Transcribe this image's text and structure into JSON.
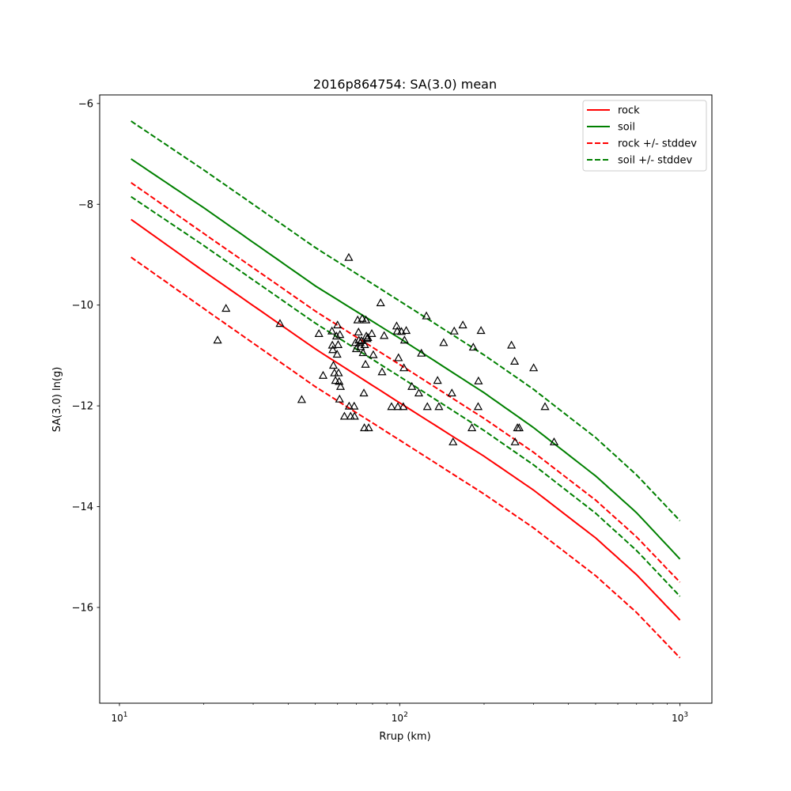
{
  "chart_data": {
    "type": "scatter",
    "title": "2016p864754: SA(3.0) mean",
    "xlabel": "Rrup (km)",
    "ylabel": "SA(3.0) ln(g)",
    "xscale": "log",
    "xlim": [
      8.5,
      1300
    ],
    "ylim": [
      -17.9,
      -5.83
    ],
    "x_ticks": [
      {
        "value": 10,
        "base": "10",
        "exp": "1"
      },
      {
        "value": 100,
        "base": "10",
        "exp": "2"
      },
      {
        "value": 1000,
        "base": "10",
        "exp": "3"
      }
    ],
    "y_ticks": [
      {
        "value": -6,
        "label": "−6"
      },
      {
        "value": -8,
        "label": "−8"
      },
      {
        "value": -10,
        "label": "−10"
      },
      {
        "value": -12,
        "label": "−12"
      },
      {
        "value": -14,
        "label": "−14"
      },
      {
        "value": -16,
        "label": "−16"
      }
    ],
    "grid": false,
    "legend_position": "top-right",
    "series": [
      {
        "name": "rock",
        "style": "solid",
        "color": "#ff0000",
        "x": [
          11,
          20,
          50,
          100,
          200,
          300,
          500,
          700,
          1000
        ],
        "y": [
          -8.3,
          -9.33,
          -10.87,
          -11.94,
          -13.0,
          -13.67,
          -14.62,
          -15.35,
          -16.25
        ]
      },
      {
        "name": "soil",
        "style": "solid",
        "color": "#008000",
        "x": [
          11,
          20,
          50,
          100,
          200,
          300,
          500,
          700,
          1000
        ],
        "y": [
          -7.1,
          -8.07,
          -9.62,
          -10.66,
          -11.74,
          -12.43,
          -13.39,
          -14.12,
          -15.04
        ]
      },
      {
        "name": "rock +/- stddev",
        "style": "dashed",
        "color": "#ff0000",
        "x": [
          11,
          20,
          50,
          100,
          200,
          300,
          500,
          700,
          1000
        ],
        "y": [
          -7.57,
          -8.58,
          -10.12,
          -11.18,
          -12.25,
          -12.92,
          -13.87,
          -14.6,
          -15.5
        ]
      },
      {
        "name": "rock +/- stddev",
        "style": "dashed",
        "color": "#ff0000",
        "legend": false,
        "x": [
          11,
          20,
          50,
          100,
          200,
          300,
          500,
          700,
          1000
        ],
        "y": [
          -9.05,
          -10.07,
          -11.62,
          -12.68,
          -13.75,
          -14.42,
          -15.37,
          -16.1,
          -17.0
        ]
      },
      {
        "name": "soil +/- stddev",
        "style": "dashed",
        "color": "#008000",
        "x": [
          11,
          20,
          50,
          100,
          200,
          300,
          500,
          700,
          1000
        ],
        "y": [
          -6.35,
          -7.32,
          -8.86,
          -9.92,
          -10.99,
          -11.67,
          -12.63,
          -13.37,
          -14.28
        ]
      },
      {
        "name": "soil +/- stddev",
        "style": "dashed",
        "color": "#008000",
        "legend": false,
        "x": [
          11,
          20,
          50,
          100,
          200,
          300,
          500,
          700,
          1000
        ],
        "y": [
          -7.85,
          -8.82,
          -10.36,
          -11.42,
          -12.49,
          -13.17,
          -14.13,
          -14.87,
          -15.78
        ]
      }
    ],
    "observations": {
      "marker": "triangle",
      "color": "#000000",
      "points": [
        [
          22.4,
          -10.7
        ],
        [
          24.0,
          -10.07
        ],
        [
          37.4,
          -10.37
        ],
        [
          44.7,
          -11.88
        ],
        [
          51.5,
          -10.57
        ],
        [
          53.3,
          -11.4
        ],
        [
          57.3,
          -10.52
        ],
        [
          57.5,
          -10.8
        ],
        [
          57.7,
          -10.89
        ],
        [
          58.0,
          -11.2
        ],
        [
          58.5,
          -11.35
        ],
        [
          59.0,
          -11.5
        ],
        [
          59.5,
          -10.62
        ],
        [
          59.8,
          -10.98
        ],
        [
          60.0,
          -10.4
        ],
        [
          60.3,
          -10.79
        ],
        [
          60.5,
          -11.35
        ],
        [
          60.8,
          -11.52
        ],
        [
          61.0,
          -11.87
        ],
        [
          61.2,
          -10.59
        ],
        [
          61.5,
          -11.62
        ],
        [
          63.5,
          -12.21
        ],
        [
          65.8,
          -9.06
        ],
        [
          66.0,
          -12.01
        ],
        [
          66.8,
          -12.21
        ],
        [
          68.8,
          -12.01
        ],
        [
          69.0,
          -12.21
        ],
        [
          69.5,
          -10.75
        ],
        [
          70.0,
          -10.87
        ],
        [
          70.8,
          -10.3
        ],
        [
          71.3,
          -10.54
        ],
        [
          71.5,
          -10.7
        ],
        [
          72.3,
          -10.75
        ],
        [
          72.5,
          -10.83
        ],
        [
          73.0,
          -10.71
        ],
        [
          73.5,
          -10.27
        ],
        [
          74.0,
          -10.95
        ],
        [
          74.5,
          -11.75
        ],
        [
          74.8,
          -12.44
        ],
        [
          75.0,
          -10.79
        ],
        [
          75.5,
          -11.18
        ],
        [
          75.8,
          -10.3
        ],
        [
          76.0,
          -10.62
        ],
        [
          76.5,
          -10.67
        ],
        [
          77.0,
          -10.65
        ],
        [
          77.5,
          -12.44
        ],
        [
          79.5,
          -10.57
        ],
        [
          80.5,
          -10.99
        ],
        [
          85.5,
          -9.96
        ],
        [
          86.5,
          -11.33
        ],
        [
          88.0,
          -10.61
        ],
        [
          93.5,
          -12.02
        ],
        [
          97.5,
          -10.42
        ],
        [
          98.0,
          -10.52
        ],
        [
          98.5,
          -12.02
        ],
        [
          99.0,
          -11.05
        ],
        [
          101.5,
          -10.53
        ],
        [
          103.0,
          -12.02
        ],
        [
          103.5,
          -11.25
        ],
        [
          104.0,
          -10.7
        ],
        [
          105.5,
          -10.51
        ],
        [
          110.5,
          -11.62
        ],
        [
          117.0,
          -11.75
        ],
        [
          119.5,
          -10.96
        ],
        [
          124.5,
          -10.22
        ],
        [
          125.5,
          -12.02
        ],
        [
          136.5,
          -11.5
        ],
        [
          138.0,
          -12.02
        ],
        [
          143.5,
          -10.75
        ],
        [
          153.5,
          -11.75
        ],
        [
          155.0,
          -12.72
        ],
        [
          156.5,
          -10.52
        ],
        [
          168.0,
          -10.4
        ],
        [
          181.0,
          -12.44
        ],
        [
          183.0,
          -10.84
        ],
        [
          190.5,
          -12.02
        ],
        [
          191.0,
          -11.51
        ],
        [
          195.0,
          -10.51
        ],
        [
          250.5,
          -10.8
        ],
        [
          257.0,
          -11.12
        ],
        [
          258.0,
          -12.72
        ],
        [
          263.0,
          -12.44
        ],
        [
          267.0,
          -12.44
        ],
        [
          300.5,
          -11.25
        ],
        [
          330.0,
          -12.02
        ],
        [
          355.5,
          -12.72
        ]
      ]
    }
  }
}
